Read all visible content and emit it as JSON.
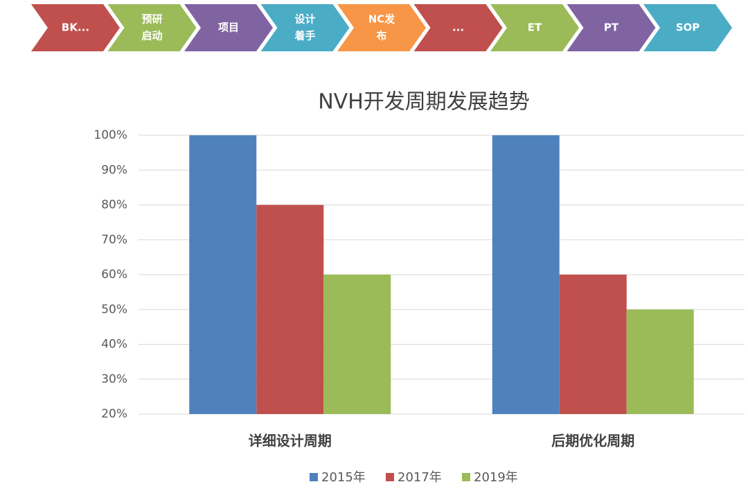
{
  "process_steps": [
    {
      "lines": [
        "BK..."
      ],
      "color": "#c0504d"
    },
    {
      "lines": [
        "预研",
        "启动"
      ],
      "color": "#9bbb59"
    },
    {
      "lines": [
        "项目"
      ],
      "color": "#8064a2"
    },
    {
      "lines": [
        "设计",
        "着手"
      ],
      "color": "#4bacc6"
    },
    {
      "lines": [
        "NC发",
        "布"
      ],
      "color": "#f79646"
    },
    {
      "lines": [
        "..."
      ],
      "color": "#c0504d"
    },
    {
      "lines": [
        "ET"
      ],
      "color": "#9bbb59"
    },
    {
      "lines": [
        "PT"
      ],
      "color": "#8064a2"
    },
    {
      "lines": [
        "SOP"
      ],
      "color": "#4bacc6"
    }
  ],
  "chart_data": {
    "type": "bar",
    "title": "NVH开发周期发展趋势",
    "categories": [
      "详细设计周期",
      "后期优化周期"
    ],
    "series": [
      {
        "name": "2015年",
        "color": "#4f81bd",
        "values": [
          100,
          100
        ]
      },
      {
        "name": "2017年",
        "color": "#c0504d",
        "values": [
          80,
          60
        ]
      },
      {
        "name": "2019年",
        "color": "#9bbb59",
        "values": [
          60,
          50
        ]
      }
    ],
    "ylim": [
      20,
      100
    ],
    "yticks": [
      {
        "value": 20,
        "label": "20%"
      },
      {
        "value": 30,
        "label": "30%"
      },
      {
        "value": 40,
        "label": "40%"
      },
      {
        "value": 50,
        "label": "50%"
      },
      {
        "value": 60,
        "label": "60%"
      },
      {
        "value": 70,
        "label": "70%"
      },
      {
        "value": 80,
        "label": "80%"
      },
      {
        "value": 90,
        "label": "90%"
      },
      {
        "value": 100,
        "label": "100%"
      }
    ],
    "grid": true,
    "legend": "bottom"
  }
}
